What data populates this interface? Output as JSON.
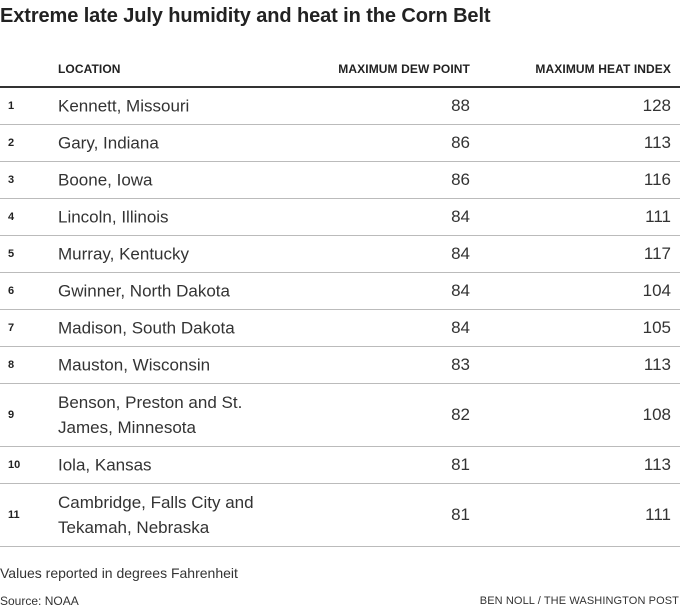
{
  "title": "Extreme late July humidity and heat in the Corn Belt",
  "chart_data": {
    "type": "table",
    "columns": [
      "",
      "LOCATION",
      "MAXIMUM DEW POINT",
      "MAXIMUM HEAT INDEX"
    ],
    "rows": [
      {
        "rank": "1",
        "location": "Kennett, Missouri",
        "dew_point": 88,
        "heat_index": 128
      },
      {
        "rank": "2",
        "location": "Gary, Indiana",
        "dew_point": 86,
        "heat_index": 113
      },
      {
        "rank": "3",
        "location": "Boone, Iowa",
        "dew_point": 86,
        "heat_index": 116
      },
      {
        "rank": "4",
        "location": "Lincoln, Illinois",
        "dew_point": 84,
        "heat_index": 111
      },
      {
        "rank": "5",
        "location": "Murray, Kentucky",
        "dew_point": 84,
        "heat_index": 117
      },
      {
        "rank": "6",
        "location": "Gwinner, North Dakota",
        "dew_point": 84,
        "heat_index": 104
      },
      {
        "rank": "7",
        "location": "Madison, South Dakota",
        "dew_point": 84,
        "heat_index": 105
      },
      {
        "rank": "8",
        "location": "Mauston, Wisconsin",
        "dew_point": 83,
        "heat_index": 113
      },
      {
        "rank": "9",
        "location": "Benson, Preston and St. James, Minnesota",
        "dew_point": 82,
        "heat_index": 108
      },
      {
        "rank": "10",
        "location": "Iola, Kansas",
        "dew_point": 81,
        "heat_index": 113
      },
      {
        "rank": "11",
        "location": "Cambridge, Falls City and Tekamah, Nebraska",
        "dew_point": 81,
        "heat_index": 111
      }
    ]
  },
  "note": "Values reported in degrees Fahrenheit",
  "source": "Source: NOAA",
  "credit": "BEN NOLL / THE WASHINGTON POST"
}
